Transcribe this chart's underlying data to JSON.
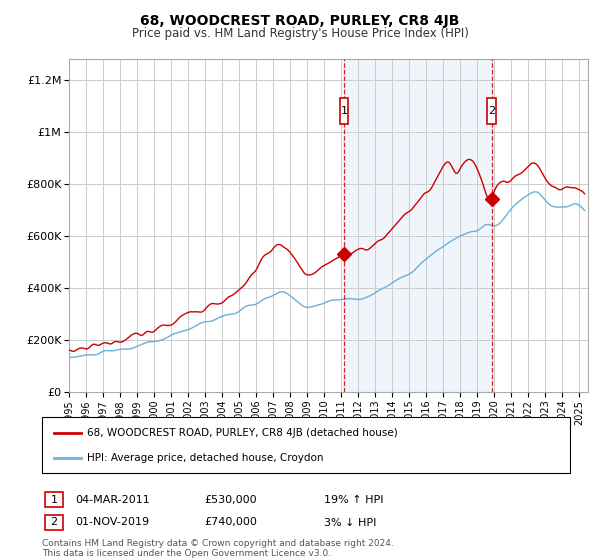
{
  "title": "68, WOODCREST ROAD, PURLEY, CR8 4JB",
  "subtitle": "Price paid vs. HM Land Registry's House Price Index (HPI)",
  "ylabel_ticks": [
    "£0",
    "£200K",
    "£400K",
    "£600K",
    "£800K",
    "£1M",
    "£1.2M"
  ],
  "ytick_values": [
    0,
    200000,
    400000,
    600000,
    800000,
    1000000,
    1200000
  ],
  "ylim": [
    0,
    1280000
  ],
  "xlim_start": 1995.0,
  "xlim_end": 2025.5,
  "legend_line1": "68, WOODCREST ROAD, PURLEY, CR8 4JB (detached house)",
  "legend_line2": "HPI: Average price, detached house, Croydon",
  "annotation1_label": "1",
  "annotation1_date": "04-MAR-2011",
  "annotation1_price": "£530,000",
  "annotation1_hpi": "19% ↑ HPI",
  "annotation2_label": "2",
  "annotation2_date": "01-NOV-2019",
  "annotation2_price": "£740,000",
  "annotation2_hpi": "3% ↓ HPI",
  "footnote1": "Contains HM Land Registry data © Crown copyright and database right 2024.",
  "footnote2": "This data is licensed under the Open Government Licence v3.0.",
  "red_line_color": "#cc0000",
  "blue_line_color": "#6ab0d8",
  "shade_color": "#ddeeff",
  "grid_color": "#cccccc",
  "annotation_box_color": "#cc0000",
  "dashed_line_color": "#cc0000",
  "background_color": "#ffffff",
  "sale1_x": 2011.17,
  "sale1_y": 530000,
  "sale2_x": 2019.83,
  "sale2_y": 740000,
  "vline1_x": 2011.17,
  "vline2_x": 2019.83
}
